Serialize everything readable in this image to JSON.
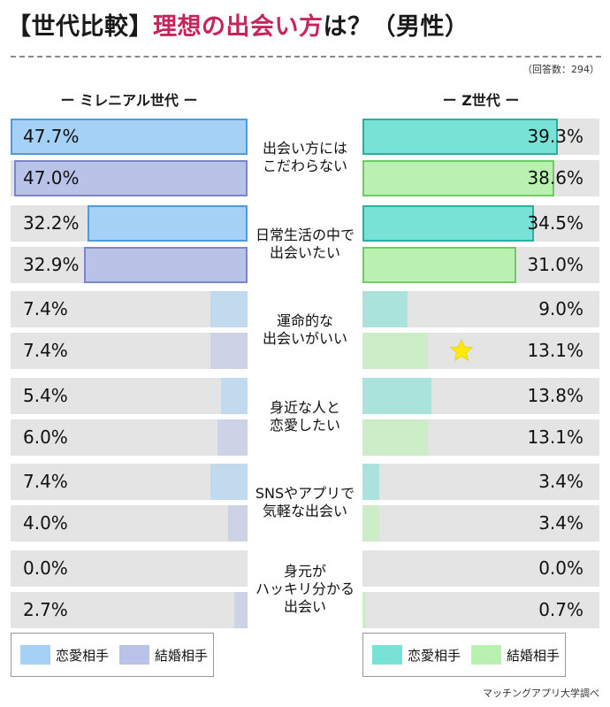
{
  "title": {
    "part1": "【世代比較】",
    "part2": "理想の出会い方",
    "part3": "は？（男性）"
  },
  "respondents": "（回答数：294）",
  "source": "マッチングアプリ大学調べ",
  "colors": {
    "left_love": "#a4d1f5",
    "left_love_outline": "#4a9be0",
    "left_marriage": "#b9c3e8",
    "left_marriage_outline": "#7a86c9",
    "right_love": "#78e2d6",
    "right_love_outline": "#2aaea0",
    "right_marriage": "#b9f2b0",
    "right_marriage_outline": "#6dcd62",
    "bar_bg": "#e4e4e4",
    "title_accent": "#c8245c",
    "star": "#ffeb00"
  },
  "chart_data": {
    "type": "bar",
    "orientation": "horizontal-butterfly",
    "xlim": [
      0,
      47.7
    ],
    "groups": [
      "ミレニアル世代",
      "Z世代"
    ],
    "group_labels": [
      "ー ミレニアル世代 ー",
      "ー Z世代 ー"
    ],
    "categories": [
      "出会い方には\nこだわらない",
      "日常生活の中で\n出会いたい",
      "運命的な\n出会いがいい",
      "身近な人と\n恋愛したい",
      "SNSやアプリで\n気軽な出会い",
      "身元が\nハッキリ分かる\n出会い"
    ],
    "series": [
      {
        "name": "恋愛相手",
        "group": "ミレニアル世代",
        "values": [
          47.7,
          32.2,
          7.4,
          5.4,
          7.4,
          0.0
        ],
        "labels": [
          "47.7%",
          "32.2%",
          "7.4%",
          "5.4%",
          "7.4%",
          "0.0%"
        ]
      },
      {
        "name": "結婚相手",
        "group": "ミレニアル世代",
        "values": [
          47.0,
          32.9,
          7.4,
          6.0,
          4.0,
          2.7
        ],
        "labels": [
          "47.0%",
          "32.9%",
          "7.4%",
          "6.0%",
          "4.0%",
          "2.7%"
        ]
      },
      {
        "name": "恋愛相手",
        "group": "Z世代",
        "values": [
          39.3,
          34.5,
          9.0,
          13.8,
          3.4,
          0.0
        ],
        "labels": [
          "39.3%",
          "34.5%",
          "9.0%",
          "13.8%",
          "3.4%",
          "0.0%"
        ]
      },
      {
        "name": "結婚相手",
        "group": "Z世代",
        "values": [
          38.6,
          31.0,
          13.1,
          13.1,
          3.4,
          0.7
        ],
        "labels": [
          "38.6%",
          "31.0%",
          "13.1%",
          "13.1%",
          "3.4%",
          "0.7%"
        ]
      }
    ],
    "highlight": {
      "group": "Z世代",
      "series": "結婚相手",
      "category_index": 2,
      "marker": "star"
    },
    "legend": [
      "恋愛相手",
      "結婚相手"
    ],
    "legend_position": "bottom"
  }
}
